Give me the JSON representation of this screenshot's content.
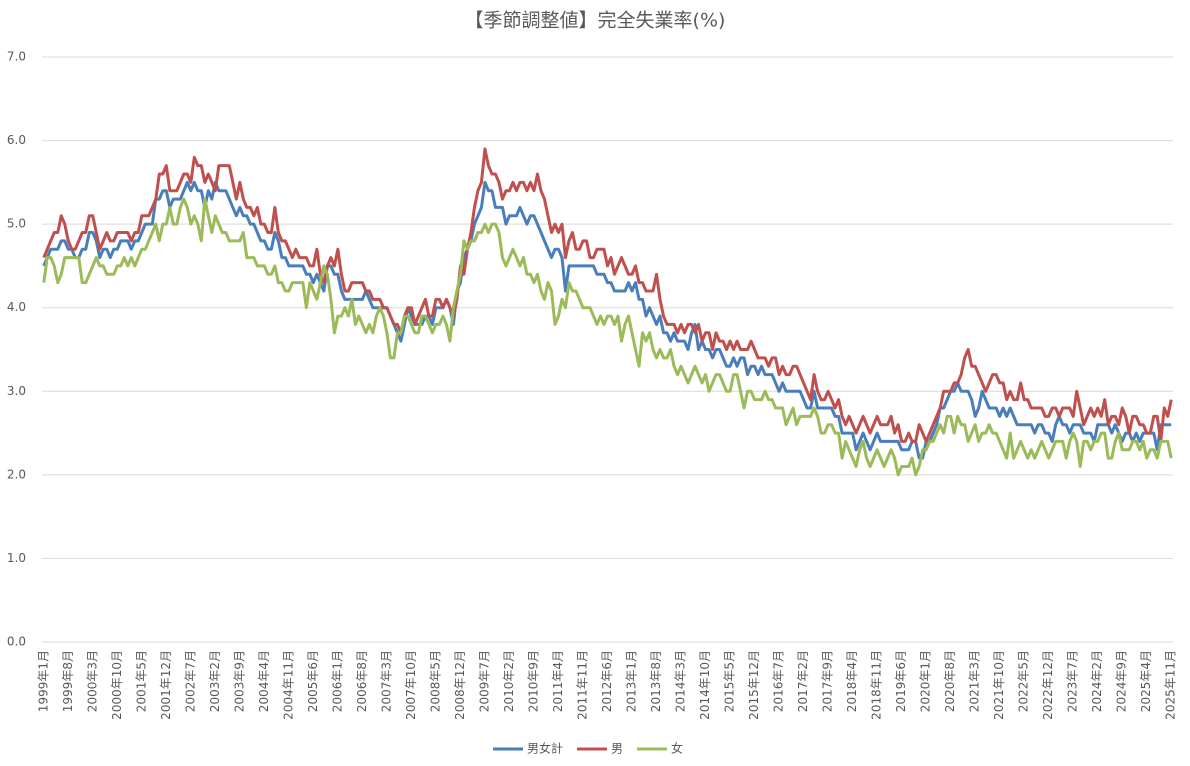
{
  "chart_data": {
    "type": "line",
    "title": "【季節調整値】完全失業率(%)",
    "categories": [
      "1999年1月",
      null,
      null,
      null,
      null,
      null,
      null,
      "1999年8月",
      null,
      null,
      null,
      null,
      null,
      null,
      "2000年3月",
      null,
      null,
      null,
      null,
      null,
      null,
      "2000年10月",
      null,
      null,
      null,
      null,
      null,
      null,
      "2001年5月",
      null,
      null,
      null,
      null,
      null,
      null,
      "2001年12月",
      null,
      null,
      null,
      null,
      null,
      null,
      "2002年7月",
      null,
      null,
      null,
      null,
      null,
      null,
      "2003年2月",
      null,
      null,
      null,
      null,
      null,
      null,
      "2003年9月",
      null,
      null,
      null,
      null,
      null,
      null,
      "2004年4月",
      null,
      null,
      null,
      null,
      null,
      null,
      "2004年11月",
      null,
      null,
      null,
      null,
      null,
      null,
      "2005年6月",
      null,
      null,
      null,
      null,
      null,
      null,
      "2006年1月",
      null,
      null,
      null,
      null,
      null,
      null,
      "2006年8月",
      null,
      null,
      null,
      null,
      null,
      null,
      "2007年3月",
      null,
      null,
      null,
      null,
      null,
      null,
      "2007年10月",
      null,
      null,
      null,
      null,
      null,
      null,
      "2008年5月",
      null,
      null,
      null,
      null,
      null,
      null,
      "2008年12月",
      null,
      null,
      null,
      null,
      null,
      null,
      "2009年7月",
      null,
      null,
      null,
      null,
      null,
      null,
      "2010年2月",
      null,
      null,
      null,
      null,
      null,
      null,
      "2010年9月",
      null,
      null,
      null,
      null,
      null,
      null,
      "2011年4月",
      null,
      null,
      null,
      null,
      null,
      null,
      "2011年11月",
      null,
      null,
      null,
      null,
      null,
      null,
      "2012年6月",
      null,
      null,
      null,
      null,
      null,
      null,
      "2013年1月",
      null,
      null,
      null,
      null,
      null,
      null,
      "2013年8月",
      null,
      null,
      null,
      null,
      null,
      null,
      "2014年3月",
      null,
      null,
      null,
      null,
      null,
      null,
      "2014年10月",
      null,
      null,
      null,
      null,
      null,
      null,
      "2015年5月",
      null,
      null,
      null,
      null,
      null,
      null,
      "2015年12月",
      null,
      null,
      null,
      null,
      null,
      null,
      "2016年7月",
      null,
      null,
      null,
      null,
      null,
      null,
      "2017年2月",
      null,
      null,
      null,
      null,
      null,
      null,
      "2017年9月",
      null,
      null,
      null,
      null,
      null,
      null,
      "2018年4月",
      null,
      null,
      null,
      null,
      null,
      null,
      "2018年11月",
      null,
      null,
      null,
      null,
      null,
      null,
      "2019年6月",
      null,
      null,
      null,
      null,
      null,
      null,
      "2020年1月",
      null,
      null,
      null,
      null,
      null,
      null,
      "2020年8月",
      null,
      null,
      null,
      null,
      null,
      null,
      "2021年3月",
      null,
      null,
      null,
      null,
      null,
      null,
      "2021年10月",
      null,
      null,
      null,
      null,
      null,
      null,
      "2022年5月",
      null,
      null,
      null,
      null,
      null,
      null,
      "2022年12月",
      null,
      null,
      null,
      null,
      null,
      null,
      "2023年7月",
      null,
      null,
      null,
      null,
      null,
      null,
      "2024年2月",
      null,
      null,
      null,
      null,
      null,
      null,
      "2024年9月",
      null,
      null,
      null,
      null,
      null,
      null,
      "2025年4月",
      null,
      null,
      null,
      null,
      null,
      null,
      "2025年11月"
    ],
    "series": [
      {
        "name": "男女計",
        "color": "#4a7ebb",
        "values": [
          4.5,
          4.6,
          4.7,
          4.7,
          4.7,
          4.8,
          4.8,
          4.7,
          4.7,
          4.6,
          4.6,
          4.7,
          4.7,
          4.9,
          4.9,
          4.8,
          4.6,
          4.7,
          4.7,
          4.6,
          4.7,
          4.7,
          4.8,
          4.8,
          4.8,
          4.7,
          4.8,
          4.8,
          4.9,
          5.0,
          5.0,
          5.0,
          5.3,
          5.3,
          5.4,
          5.4,
          5.2,
          5.3,
          5.3,
          5.3,
          5.4,
          5.5,
          5.4,
          5.5,
          5.4,
          5.4,
          5.2,
          5.4,
          5.3,
          5.5,
          5.4,
          5.4,
          5.4,
          5.3,
          5.2,
          5.1,
          5.2,
          5.1,
          5.1,
          5.0,
          5.0,
          4.9,
          4.8,
          4.8,
          4.7,
          4.7,
          4.9,
          4.8,
          4.6,
          4.6,
          4.5,
          4.5,
          4.5,
          4.5,
          4.5,
          4.4,
          4.4,
          4.3,
          4.4,
          4.3,
          4.2,
          4.5,
          4.5,
          4.4,
          4.4,
          4.2,
          4.1,
          4.1,
          4.1,
          4.1,
          4.1,
          4.1,
          4.2,
          4.1,
          4.0,
          4.0,
          4.0,
          4.0,
          4.0,
          3.9,
          3.8,
          3.7,
          3.6,
          3.8,
          4.0,
          3.9,
          3.8,
          3.8,
          3.8,
          3.9,
          3.9,
          3.8,
          4.0,
          4.0,
          4.0,
          4.1,
          4.0,
          3.8,
          4.2,
          4.3,
          4.6,
          4.7,
          4.8,
          5.0,
          5.1,
          5.2,
          5.5,
          5.4,
          5.4,
          5.2,
          5.2,
          5.2,
          5.0,
          5.1,
          5.1,
          5.1,
          5.2,
          5.1,
          5.0,
          5.1,
          5.1,
          5.0,
          4.9,
          4.8,
          4.7,
          4.6,
          4.7,
          4.7,
          4.6,
          4.2,
          4.5,
          4.5,
          4.5,
          4.5,
          4.5,
          4.5,
          4.5,
          4.5,
          4.4,
          4.4,
          4.4,
          4.3,
          4.3,
          4.2,
          4.2,
          4.2,
          4.2,
          4.3,
          4.2,
          4.3,
          4.1,
          4.1,
          3.9,
          4.0,
          3.9,
          3.8,
          3.9,
          3.7,
          3.7,
          3.6,
          3.7,
          3.6,
          3.6,
          3.6,
          3.5,
          3.7,
          3.8,
          3.5,
          3.6,
          3.5,
          3.5,
          3.4,
          3.5,
          3.5,
          3.4,
          3.3,
          3.3,
          3.4,
          3.3,
          3.4,
          3.4,
          3.2,
          3.3,
          3.3,
          3.2,
          3.3,
          3.2,
          3.2,
          3.2,
          3.1,
          3.0,
          3.1,
          3.0,
          3.0,
          3.0,
          3.0,
          3.0,
          2.9,
          2.8,
          2.8,
          3.0,
          2.8,
          2.8,
          2.8,
          2.8,
          2.8,
          2.7,
          2.7,
          2.5,
          2.5,
          2.5,
          2.5,
          2.3,
          2.4,
          2.5,
          2.4,
          2.3,
          2.4,
          2.5,
          2.4,
          2.4,
          2.4,
          2.4,
          2.4,
          2.4,
          2.3,
          2.3,
          2.3,
          2.4,
          2.4,
          2.2,
          2.2,
          2.4,
          2.4,
          2.5,
          2.6,
          2.8,
          2.8,
          2.9,
          3.0,
          3.0,
          3.1,
          3.0,
          3.0,
          3.0,
          2.9,
          2.7,
          2.8,
          3.0,
          2.9,
          2.8,
          2.8,
          2.8,
          2.7,
          2.8,
          2.7,
          2.8,
          2.7,
          2.6,
          2.6,
          2.6,
          2.6,
          2.6,
          2.5,
          2.6,
          2.6,
          2.5,
          2.5,
          2.4,
          2.6,
          2.7,
          2.6,
          2.6,
          2.5,
          2.6,
          2.6,
          2.6,
          2.5,
          2.5,
          2.5,
          2.4,
          2.6,
          2.6,
          2.6,
          2.6,
          2.5,
          2.6,
          2.5,
          2.4,
          2.5,
          2.5,
          2.4,
          2.5,
          2.4,
          2.5,
          2.5,
          2.5,
          2.5,
          2.3,
          2.6,
          2.6,
          2.6,
          2.6
        ]
      },
      {
        "name": "男",
        "color": "#c0504d",
        "values": [
          4.6,
          4.7,
          4.8,
          4.9,
          4.9,
          5.1,
          5.0,
          4.8,
          4.7,
          4.7,
          4.8,
          4.9,
          4.9,
          5.1,
          5.1,
          4.9,
          4.7,
          4.8,
          4.9,
          4.8,
          4.8,
          4.9,
          4.9,
          4.9,
          4.9,
          4.8,
          4.9,
          4.9,
          5.1,
          5.1,
          5.1,
          5.2,
          5.3,
          5.6,
          5.6,
          5.7,
          5.4,
          5.4,
          5.4,
          5.5,
          5.6,
          5.6,
          5.5,
          5.8,
          5.7,
          5.7,
          5.5,
          5.6,
          5.5,
          5.4,
          5.7,
          5.7,
          5.7,
          5.7,
          5.5,
          5.3,
          5.5,
          5.3,
          5.2,
          5.2,
          5.1,
          5.2,
          5.0,
          5.0,
          4.9,
          4.9,
          5.2,
          4.9,
          4.8,
          4.8,
          4.7,
          4.6,
          4.7,
          4.6,
          4.6,
          4.6,
          4.5,
          4.5,
          4.7,
          4.4,
          4.3,
          4.5,
          4.6,
          4.5,
          4.7,
          4.4,
          4.2,
          4.2,
          4.3,
          4.3,
          4.3,
          4.3,
          4.2,
          4.2,
          4.1,
          4.1,
          4.1,
          4.0,
          4.0,
          3.9,
          3.8,
          3.8,
          3.7,
          3.9,
          4.0,
          4.0,
          3.8,
          3.9,
          4.0,
          4.1,
          3.9,
          3.9,
          4.1,
          4.1,
          4.0,
          4.1,
          4.0,
          3.9,
          4.1,
          4.5,
          4.4,
          4.7,
          4.9,
          5.2,
          5.4,
          5.5,
          5.9,
          5.7,
          5.6,
          5.6,
          5.5,
          5.3,
          5.4,
          5.4,
          5.5,
          5.4,
          5.5,
          5.5,
          5.4,
          5.5,
          5.4,
          5.6,
          5.4,
          5.3,
          5.1,
          4.9,
          5.0,
          4.9,
          5.0,
          4.6,
          4.8,
          4.9,
          4.7,
          4.7,
          4.8,
          4.8,
          4.6,
          4.6,
          4.7,
          4.7,
          4.7,
          4.5,
          4.6,
          4.4,
          4.5,
          4.6,
          4.5,
          4.4,
          4.4,
          4.5,
          4.3,
          4.3,
          4.2,
          4.2,
          4.2,
          4.4,
          4.1,
          3.9,
          3.8,
          3.8,
          3.8,
          3.7,
          3.8,
          3.7,
          3.8,
          3.8,
          3.7,
          3.8,
          3.6,
          3.7,
          3.7,
          3.5,
          3.7,
          3.6,
          3.6,
          3.5,
          3.6,
          3.5,
          3.6,
          3.5,
          3.5,
          3.5,
          3.6,
          3.5,
          3.4,
          3.4,
          3.4,
          3.3,
          3.4,
          3.4,
          3.2,
          3.3,
          3.2,
          3.2,
          3.3,
          3.3,
          3.2,
          3.1,
          3.0,
          2.9,
          3.2,
          3.0,
          2.9,
          2.9,
          3.0,
          2.9,
          2.8,
          2.9,
          2.7,
          2.6,
          2.7,
          2.6,
          2.5,
          2.6,
          2.7,
          2.6,
          2.5,
          2.6,
          2.7,
          2.6,
          2.6,
          2.6,
          2.7,
          2.5,
          2.6,
          2.4,
          2.4,
          2.5,
          2.4,
          2.4,
          2.6,
          2.5,
          2.4,
          2.5,
          2.6,
          2.7,
          2.8,
          3.0,
          3.0,
          3.0,
          3.1,
          3.1,
          3.2,
          3.4,
          3.5,
          3.3,
          3.3,
          3.2,
          3.1,
          3.0,
          3.1,
          3.2,
          3.2,
          3.1,
          3.1,
          2.9,
          3.0,
          2.9,
          2.9,
          3.1,
          2.9,
          2.9,
          2.8,
          2.8,
          2.8,
          2.8,
          2.7,
          2.7,
          2.8,
          2.8,
          2.7,
          2.8,
          2.8,
          2.8,
          2.7,
          3.0,
          2.8,
          2.6,
          2.7,
          2.8,
          2.7,
          2.8,
          2.7,
          2.9,
          2.6,
          2.7,
          2.7,
          2.6,
          2.8,
          2.7,
          2.5,
          2.7,
          2.7,
          2.6,
          2.6,
          2.5,
          2.5,
          2.7,
          2.7,
          2.4,
          2.8,
          2.7,
          2.9
        ]
      },
      {
        "name": "女",
        "color": "#9bbb59",
        "values": [
          4.3,
          4.6,
          4.6,
          4.5,
          4.3,
          4.4,
          4.6,
          4.6,
          4.6,
          4.6,
          4.6,
          4.3,
          4.3,
          4.4,
          4.5,
          4.6,
          4.5,
          4.5,
          4.4,
          4.4,
          4.4,
          4.5,
          4.5,
          4.6,
          4.5,
          4.6,
          4.5,
          4.6,
          4.7,
          4.7,
          4.8,
          4.9,
          5.0,
          4.8,
          5.0,
          5.0,
          5.2,
          5.0,
          5.0,
          5.2,
          5.3,
          5.2,
          5.0,
          5.1,
          5.0,
          4.8,
          5.3,
          5.1,
          4.9,
          5.1,
          5.0,
          4.9,
          4.9,
          4.8,
          4.8,
          4.8,
          4.8,
          4.9,
          4.6,
          4.6,
          4.6,
          4.5,
          4.5,
          4.5,
          4.4,
          4.4,
          4.5,
          4.3,
          4.3,
          4.2,
          4.2,
          4.3,
          4.3,
          4.3,
          4.3,
          4.0,
          4.3,
          4.2,
          4.1,
          4.3,
          4.5,
          4.4,
          4.1,
          3.7,
          3.9,
          3.9,
          4.0,
          3.9,
          4.1,
          3.8,
          3.9,
          3.8,
          3.7,
          3.8,
          3.7,
          3.9,
          4.0,
          3.9,
          3.7,
          3.4,
          3.4,
          3.7,
          3.7,
          3.9,
          3.9,
          3.8,
          3.7,
          3.7,
          3.9,
          3.9,
          3.8,
          3.7,
          3.8,
          3.8,
          3.9,
          3.8,
          3.6,
          4.0,
          4.2,
          4.4,
          4.8,
          4.7,
          4.8,
          4.8,
          4.9,
          4.9,
          5.0,
          4.9,
          5.0,
          5.0,
          4.9,
          4.6,
          4.5,
          4.6,
          4.7,
          4.6,
          4.5,
          4.6,
          4.4,
          4.4,
          4.3,
          4.4,
          4.2,
          4.1,
          4.3,
          4.2,
          3.8,
          3.9,
          4.1,
          4.0,
          4.3,
          4.2,
          4.2,
          4.1,
          4.0,
          4.0,
          4.0,
          3.9,
          3.8,
          3.9,
          3.8,
          3.9,
          3.9,
          3.8,
          3.9,
          3.6,
          3.8,
          3.9,
          3.7,
          3.5,
          3.3,
          3.7,
          3.6,
          3.7,
          3.5,
          3.4,
          3.5,
          3.4,
          3.4,
          3.5,
          3.3,
          3.2,
          3.3,
          3.2,
          3.1,
          3.2,
          3.3,
          3.2,
          3.1,
          3.2,
          3.0,
          3.1,
          3.2,
          3.2,
          3.1,
          3.0,
          3.0,
          3.2,
          3.2,
          3.0,
          2.8,
          3.0,
          3.0,
          2.9,
          2.9,
          2.9,
          3.0,
          2.9,
          2.9,
          2.8,
          2.8,
          2.8,
          2.6,
          2.7,
          2.8,
          2.6,
          2.7,
          2.7,
          2.7,
          2.7,
          2.8,
          2.7,
          2.5,
          2.5,
          2.6,
          2.6,
          2.5,
          2.5,
          2.2,
          2.4,
          2.3,
          2.2,
          2.1,
          2.3,
          2.4,
          2.2,
          2.1,
          2.2,
          2.3,
          2.2,
          2.1,
          2.2,
          2.3,
          2.2,
          2.0,
          2.1,
          2.1,
          2.1,
          2.2,
          2.0,
          2.1,
          2.3,
          2.3,
          2.4,
          2.4,
          2.5,
          2.6,
          2.5,
          2.7,
          2.7,
          2.5,
          2.7,
          2.6,
          2.6,
          2.4,
          2.5,
          2.6,
          2.4,
          2.5,
          2.5,
          2.6,
          2.5,
          2.5,
          2.4,
          2.3,
          2.2,
          2.5,
          2.2,
          2.3,
          2.4,
          2.3,
          2.2,
          2.3,
          2.2,
          2.3,
          2.4,
          2.3,
          2.2,
          2.3,
          2.4,
          2.4,
          2.4,
          2.2,
          2.4,
          2.5,
          2.4,
          2.1,
          2.4,
          2.4,
          2.3,
          2.4,
          2.4,
          2.5,
          2.5,
          2.2,
          2.2,
          2.4,
          2.5,
          2.3,
          2.3,
          2.3,
          2.4,
          2.4,
          2.3,
          2.4,
          2.2,
          2.3,
          2.3,
          2.2,
          2.4,
          2.4,
          2.4,
          2.2
        ]
      }
    ],
    "ylim": [
      0,
      7
    ],
    "yticks": [
      {
        "value": 0,
        "label": "0.0"
      },
      {
        "value": 1,
        "label": "1.0"
      },
      {
        "value": 2,
        "label": "2.0"
      },
      {
        "value": 3,
        "label": "3.0"
      },
      {
        "value": 4,
        "label": "4.0"
      },
      {
        "value": 5,
        "label": "5.0"
      },
      {
        "value": 6,
        "label": "6.0"
      },
      {
        "value": 7,
        "label": "7.0"
      }
    ],
    "grid": true,
    "legend": "bottom"
  }
}
